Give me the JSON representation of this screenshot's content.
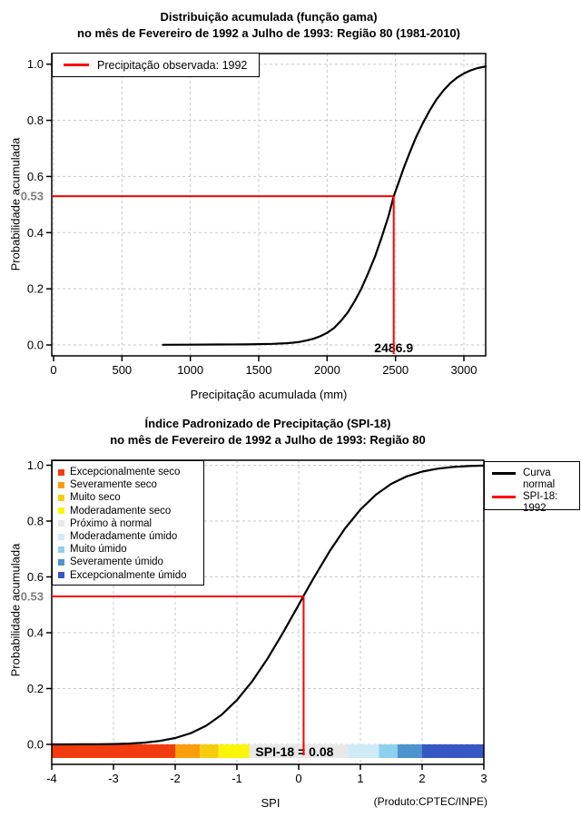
{
  "colors": {
    "red_line": "#FF0000",
    "curve": "#000000",
    "grid": "#C8C8C8",
    "frame": "#000000",
    "p53_gray": "#7D7D7D",
    "background": "#FFFFFF"
  },
  "chart_data": [
    {
      "type": "line",
      "title": "Distribuição acumulada (função gama)",
      "subtitle": "no mês de Fevereiro de 1992 a Julho de 1993: Região 80 (1981-2010)",
      "xlabel": "Precipitação acumulada (mm)",
      "ylabel": "Probabilidade acumulada",
      "xlim": [
        0,
        3160
      ],
      "ylim": [
        0,
        1
      ],
      "grid": true,
      "x_ticks": [
        0,
        500,
        1000,
        1500,
        2000,
        2500,
        3000
      ],
      "y_ticks": [
        0.0,
        0.2,
        0.4,
        0.6,
        0.8,
        1.0
      ],
      "legend": {
        "position": "top-left",
        "items": [
          {
            "label": "Precipitação observada: 1992",
            "color": "#FF0000"
          }
        ]
      },
      "marker": {
        "x": 2486.9,
        "p": 0.53,
        "x_label": "2486.9",
        "p_label": "0.53",
        "color": "#FF0000"
      },
      "series": [
        {
          "name": "Distribuição acumulada (função gama)",
          "color": "#000000",
          "points": [
            [
              800,
              0.0005
            ],
            [
              1000,
              0.001
            ],
            [
              1200,
              0.0015
            ],
            [
              1400,
              0.002
            ],
            [
              1500,
              0.003
            ],
            [
              1600,
              0.004
            ],
            [
              1700,
              0.006
            ],
            [
              1750,
              0.008
            ],
            [
              1800,
              0.011
            ],
            [
              1850,
              0.016
            ],
            [
              1900,
              0.022
            ],
            [
              1950,
              0.031
            ],
            [
              2000,
              0.043
            ],
            [
              2050,
              0.06
            ],
            [
              2100,
              0.085
            ],
            [
              2150,
              0.115
            ],
            [
              2200,
              0.155
            ],
            [
              2250,
              0.2
            ],
            [
              2300,
              0.255
            ],
            [
              2350,
              0.315
            ],
            [
              2400,
              0.385
            ],
            [
              2450,
              0.46
            ],
            [
              2486.9,
              0.53
            ],
            [
              2520,
              0.575
            ],
            [
              2560,
              0.63
            ],
            [
              2600,
              0.68
            ],
            [
              2650,
              0.74
            ],
            [
              2700,
              0.79
            ],
            [
              2750,
              0.835
            ],
            [
              2800,
              0.875
            ],
            [
              2850,
              0.906
            ],
            [
              2900,
              0.932
            ],
            [
              2950,
              0.952
            ],
            [
              3000,
              0.967
            ],
            [
              3050,
              0.978
            ],
            [
              3100,
              0.986
            ],
            [
              3160,
              0.992
            ]
          ]
        }
      ]
    },
    {
      "type": "line",
      "title": "Índice Padronizado de Precipitação (SPI-18)",
      "subtitle": "no mês de Fevereiro de 1992 a Julho de 1993: Região 80",
      "xlabel": "SPI",
      "ylabel": "Probabilidade acumulada",
      "credit": "(Produto:CPTEC/INPE)",
      "xlim": [
        -4,
        3
      ],
      "ylim": [
        0,
        1
      ],
      "grid": true,
      "x_ticks": [
        -4,
        -3,
        -2,
        -1,
        0,
        1,
        2,
        3
      ],
      "y_ticks": [
        0.0,
        0.2,
        0.4,
        0.6,
        0.8,
        1.0
      ],
      "categories": [
        {
          "label": "Excepcionalmente seco",
          "color": "#F23B0F",
          "from": -4.0,
          "to": -2.0
        },
        {
          "label": "Severamente seco",
          "color": "#FB9E0B",
          "from": -2.0,
          "to": -1.6
        },
        {
          "label": "Muito seco",
          "color": "#F7CC0F",
          "from": -1.6,
          "to": -1.3
        },
        {
          "label": "Moderadamente seco",
          "color": "#FBF50A",
          "from": -1.3,
          "to": -0.8
        },
        {
          "label": "Próximo à normal",
          "color": "#E8E8E8",
          "from": -0.8,
          "to": 0.8
        },
        {
          "label": "Moderadamente úmido",
          "color": "#CFEBF8",
          "from": 0.8,
          "to": 1.3
        },
        {
          "label": "Muito úmido",
          "color": "#8FD0EE",
          "from": 1.3,
          "to": 1.6
        },
        {
          "label": "Severamente úmido",
          "color": "#4D93CD",
          "from": 1.6,
          "to": 2.0
        },
        {
          "label": "Excepcionalmente úmido",
          "color": "#3657C4",
          "from": 2.0,
          "to": 3.0
        }
      ],
      "line_legend": {
        "position": "top-right",
        "items": [
          {
            "label": "Curva normal",
            "color": "#000000"
          },
          {
            "label": "SPI-18: 1992",
            "color": "#FF0000"
          }
        ]
      },
      "marker": {
        "x": 0.08,
        "p": 0.53,
        "x_label": "SPI-18 = 0.08",
        "p_label": "0.53",
        "color": "#FF0000"
      },
      "series": [
        {
          "name": "Curva normal",
          "color": "#000000",
          "points": [
            [
              -4,
              3e-05
            ],
            [
              -3.75,
              0.0001
            ],
            [
              -3.5,
              0.0002
            ],
            [
              -3.25,
              0.0006
            ],
            [
              -3,
              0.0013
            ],
            [
              -2.75,
              0.003
            ],
            [
              -2.5,
              0.0062
            ],
            [
              -2.25,
              0.0122
            ],
            [
              -2,
              0.0228
            ],
            [
              -1.75,
              0.0401
            ],
            [
              -1.5,
              0.0668
            ],
            [
              -1.25,
              0.1056
            ],
            [
              -1,
              0.1587
            ],
            [
              -0.75,
              0.2266
            ],
            [
              -0.5,
              0.3085
            ],
            [
              -0.25,
              0.4013
            ],
            [
              0,
              0.5
            ],
            [
              0.08,
              0.532
            ],
            [
              0.25,
              0.5987
            ],
            [
              0.5,
              0.6915
            ],
            [
              0.75,
              0.7734
            ],
            [
              1,
              0.8413
            ],
            [
              1.25,
              0.8944
            ],
            [
              1.5,
              0.9332
            ],
            [
              1.75,
              0.9599
            ],
            [
              2,
              0.9772
            ],
            [
              2.25,
              0.9878
            ],
            [
              2.5,
              0.9938
            ],
            [
              2.75,
              0.997
            ],
            [
              3,
              0.9987
            ]
          ]
        }
      ]
    }
  ]
}
